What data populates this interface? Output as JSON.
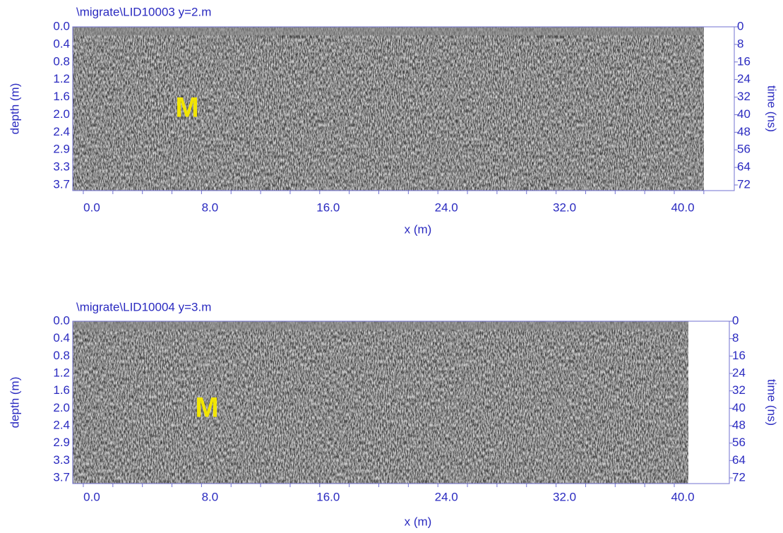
{
  "panels": [
    {
      "title": "\\migrate\\LID10003    y=2.m",
      "y_label": "depth (m)",
      "y2_label": "time (ns)",
      "x_label": "x (m)",
      "annotation": "M",
      "y_ticks": [
        "0.0",
        "0.4",
        "0.8",
        "1.2",
        "1.6",
        "2.0",
        "2.4",
        "2.9",
        "3.3",
        "3.7"
      ],
      "y2_ticks": [
        "0",
        "8",
        "16",
        "24",
        "32",
        "40",
        "48",
        "56",
        "64",
        "72"
      ],
      "x_ticks": [
        "0.0",
        "8.0",
        "16.0",
        "24.0",
        "32.0",
        "40.0"
      ]
    },
    {
      "title": "\\migrate\\LID10004    y=3.m",
      "y_label": "depth (m)",
      "y2_label": "time (ns)",
      "x_label": "x (m)",
      "annotation": "M",
      "y_ticks": [
        "0.0",
        "0.4",
        "0.8",
        "1.2",
        "1.6",
        "2.0",
        "2.4",
        "2.9",
        "3.3",
        "3.7"
      ],
      "y2_ticks": [
        "0",
        "8",
        "16",
        "24",
        "32",
        "40",
        "48",
        "56",
        "64",
        "72"
      ],
      "x_ticks": [
        "0.0",
        "8.0",
        "16.0",
        "24.0",
        "32.0",
        "40.0"
      ]
    }
  ]
}
